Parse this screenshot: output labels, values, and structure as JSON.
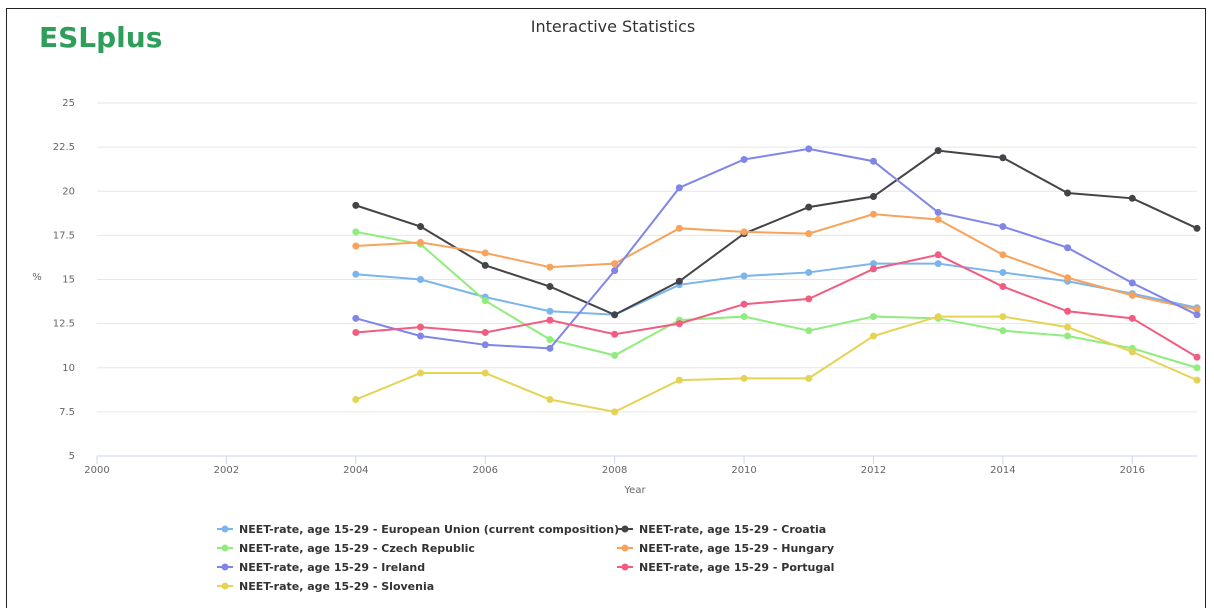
{
  "logo": "ESLplus",
  "chart_data": {
    "type": "line",
    "title": "Interactive Statistics",
    "xlabel": "Year",
    "ylabel": "%",
    "x": [
      2004,
      2005,
      2006,
      2007,
      2008,
      2009,
      2010,
      2011,
      2012,
      2013,
      2014,
      2015,
      2016,
      2017
    ],
    "xlim": [
      2000,
      2017
    ],
    "xticks": [
      2000,
      2002,
      2004,
      2006,
      2008,
      2010,
      2012,
      2014,
      2016
    ],
    "ylim": [
      5,
      25
    ],
    "yticks": [
      5,
      7.5,
      10,
      12.5,
      15,
      17.5,
      20,
      22.5,
      25
    ],
    "grid": true,
    "series": [
      {
        "name": "NEET-rate, age 15-29 - European Union (current composition)",
        "color": "#7cb5ec",
        "values": [
          15.3,
          15.0,
          14.0,
          13.2,
          13.0,
          14.7,
          15.2,
          15.4,
          15.9,
          15.9,
          15.4,
          14.9,
          14.2,
          13.4
        ]
      },
      {
        "name": "NEET-rate, age 15-29 - Croatia",
        "color": "#434348",
        "values": [
          19.2,
          18.0,
          15.8,
          14.6,
          13.0,
          14.9,
          17.6,
          19.1,
          19.7,
          22.3,
          21.9,
          19.9,
          19.6,
          17.9
        ]
      },
      {
        "name": "NEET-rate, age 15-29 - Czech Republic",
        "color": "#90ed7d",
        "values": [
          17.7,
          17.0,
          13.8,
          11.6,
          10.7,
          12.7,
          12.9,
          12.1,
          12.9,
          12.8,
          12.1,
          11.8,
          11.1,
          10.0
        ]
      },
      {
        "name": "NEET-rate, age 15-29 - Hungary",
        "color": "#f7a35c",
        "values": [
          16.9,
          17.1,
          16.5,
          15.7,
          15.9,
          17.9,
          17.7,
          17.6,
          18.7,
          18.4,
          16.4,
          15.1,
          14.1,
          13.3
        ]
      },
      {
        "name": "NEET-rate, age 15-29 - Ireland",
        "color": "#8085e9",
        "values": [
          12.8,
          11.8,
          11.3,
          11.1,
          15.5,
          20.2,
          21.8,
          22.4,
          21.7,
          18.8,
          18.0,
          16.8,
          14.8,
          13.0
        ]
      },
      {
        "name": "NEET-rate, age 15-29 - Portugal",
        "color": "#f15c80",
        "values": [
          12.0,
          12.3,
          12.0,
          12.7,
          11.9,
          12.5,
          13.6,
          13.9,
          15.6,
          16.4,
          14.6,
          13.2,
          12.8,
          10.6
        ]
      },
      {
        "name": "NEET-rate, age 15-29 - Slovenia",
        "color": "#e4d354",
        "values": [
          8.2,
          9.7,
          9.7,
          8.2,
          7.5,
          9.3,
          9.4,
          9.4,
          11.8,
          12.9,
          12.9,
          12.3,
          10.9,
          9.3
        ]
      }
    ]
  }
}
